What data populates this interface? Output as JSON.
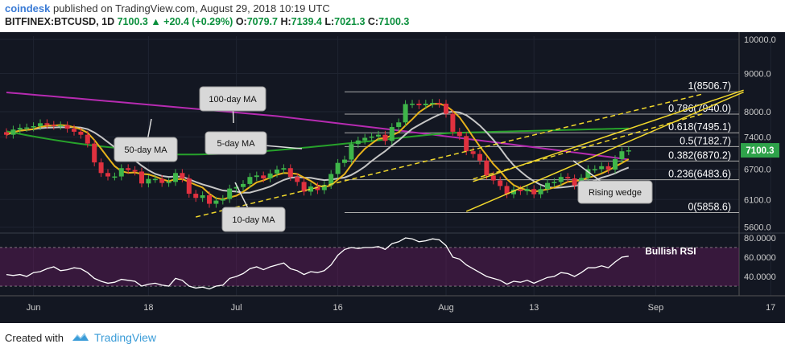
{
  "header": {
    "brand": "coindesk",
    "published": " published on TradingView.com, August 29, 2018 10:19 UTC",
    "symbol": "BITFINEX:BTCUSD, 1D",
    "price": "7100.3",
    "change": "▲ +20.4 (+0.29%)",
    "o_label": "O:",
    "o_val": "7079.7",
    "h_label": "H:",
    "h_val": "7139.4",
    "l_label": "L:",
    "l_val": "7021.3",
    "c_label": "C:",
    "c_val": "7100.3"
  },
  "footer": {
    "created_with": "Created with",
    "tv_name": "TradingView"
  },
  "colors": {
    "background": "#131722",
    "up": "#3fb64a",
    "down": "#e0313f",
    "ma5": "#e7b21b",
    "ma10": "#c6c6c6",
    "ma50": "#27a22b",
    "ma100": "#b62bb1",
    "fib": "#aaaaaa",
    "wedge": "#f0d72c",
    "rsi": "#ffffff"
  },
  "chart_data": {
    "type": "candlestick",
    "price_axis": {
      "scale": "log",
      "range": [
        5500,
        10100
      ],
      "ticks": [
        "10000.0",
        "9000.0",
        "8000.0",
        "7400.0",
        "6700.0",
        "6100.0",
        "5600.0"
      ],
      "current_price_label": "7100.3"
    },
    "x_axis": {
      "range_days": [
        0,
        103
      ],
      "ticks": [
        {
          "day": 4,
          "label": "Jun"
        },
        {
          "day": 21,
          "label": "18"
        },
        {
          "day": 34,
          "label": "Jul"
        },
        {
          "day": 49,
          "label": "16"
        },
        {
          "day": 65,
          "label": "Aug"
        },
        {
          "day": 78,
          "label": "13"
        },
        {
          "day": 96,
          "label": "Sep"
        },
        {
          "day": 113,
          "label": "17"
        }
      ]
    },
    "candles_close": [
      7450,
      7570,
      7610,
      7620,
      7650,
      7720,
      7680,
      7660,
      7670,
      7590,
      7520,
      7450,
      7250,
      6840,
      6620,
      6550,
      6550,
      6720,
      6680,
      6650,
      6410,
      6500,
      6500,
      6420,
      6440,
      6620,
      6510,
      6210,
      6130,
      6180,
      6020,
      6080,
      6110,
      6310,
      6340,
      6400,
      6540,
      6570,
      6510,
      6610,
      6690,
      6720,
      6540,
      6440,
      6250,
      6350,
      6280,
      6380,
      6600,
      6830,
      6900,
      7240,
      7320,
      7380,
      7410,
      7450,
      7310,
      7630,
      7740,
      8190,
      8200,
      8160,
      8200,
      8220,
      8200,
      7950,
      7520,
      7420,
      7080,
      7020,
      6880,
      6570,
      6470,
      6360,
      6200,
      6290,
      6260,
      6300,
      6200,
      6300,
      6420,
      6440,
      6540,
      6510,
      6370,
      6520,
      6700,
      6700,
      6760,
      6690,
      6910,
      7080,
      7100
    ],
    "fib_levels": [
      {
        "label": "1(8506.7)",
        "value": 8506.7
      },
      {
        "label": "0.786(7940.0)",
        "value": 7940.0
      },
      {
        "label": "0.618(7495.1)",
        "value": 7495.1
      },
      {
        "label": "0.5(7182.7)",
        "value": 7182.7
      },
      {
        "label": "0.382(6870.2)",
        "value": 6870.2
      },
      {
        "label": "0.236(6483.6)",
        "value": 6483.6
      },
      {
        "label": "0(5858.6)",
        "value": 5858.6
      }
    ],
    "annotations": [
      "100-day MA",
      "50-day MA",
      "5-day MA",
      "10-day MA",
      "Rising wedge",
      "Bullish RSI"
    ],
    "rsi": {
      "range": [
        20,
        85
      ],
      "ticks": [
        "80.0000",
        "60.0000",
        "40.0000"
      ],
      "bands": [
        70,
        30
      ],
      "values": [
        42,
        41,
        42,
        40,
        44,
        45,
        48,
        50,
        46,
        47,
        49,
        48,
        44,
        38,
        35,
        33,
        34,
        37,
        36,
        35,
        30,
        32,
        33,
        31,
        30,
        38,
        36,
        30,
        28,
        29,
        27,
        30,
        31,
        38,
        40,
        43,
        48,
        50,
        47,
        50,
        52,
        54,
        48,
        46,
        42,
        45,
        44,
        46,
        52,
        62,
        68,
        70,
        69,
        70,
        70,
        71,
        68,
        74,
        76,
        80,
        79,
        76,
        77,
        79,
        78,
        72,
        60,
        58,
        52,
        48,
        44,
        40,
        38,
        36,
        32,
        35,
        34,
        36,
        33,
        36,
        39,
        40,
        44,
        43,
        40,
        44,
        49,
        49,
        51,
        49,
        55,
        60,
        61
      ]
    }
  }
}
